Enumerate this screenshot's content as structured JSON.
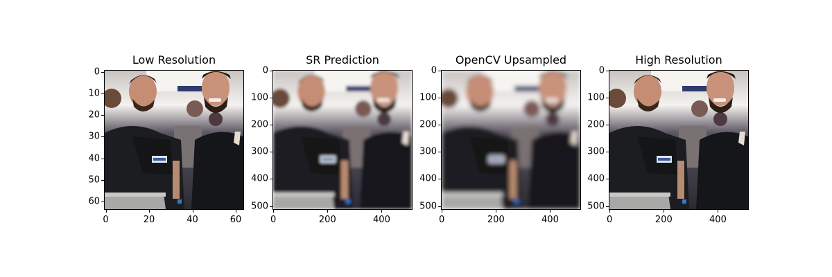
{
  "panels": [
    {
      "title": "Low Resolution",
      "y_ticks": [
        "0",
        "10",
        "20",
        "30",
        "40",
        "50",
        "60"
      ],
      "x_ticks": [
        "0",
        "20",
        "40",
        "60"
      ],
      "pixelated": true,
      "blur": 0
    },
    {
      "title": "SR Prediction",
      "y_ticks": [
        "0",
        "100",
        "200",
        "300",
        "400",
        "500"
      ],
      "x_ticks": [
        "0",
        "200",
        "400"
      ],
      "pixelated": false,
      "blur": 2.2
    },
    {
      "title": "OpenCV Upsampled",
      "y_ticks": [
        "0",
        "100",
        "200",
        "300",
        "400",
        "500"
      ],
      "x_ticks": [
        "0",
        "200",
        "400"
      ],
      "pixelated": false,
      "blur": 3.2
    },
    {
      "title": "High Resolution",
      "y_ticks": [
        "0",
        "100",
        "200",
        "300",
        "400",
        "500"
      ],
      "x_ticks": [
        "0",
        "200",
        "400"
      ],
      "pixelated": false,
      "blur": 0
    }
  ]
}
